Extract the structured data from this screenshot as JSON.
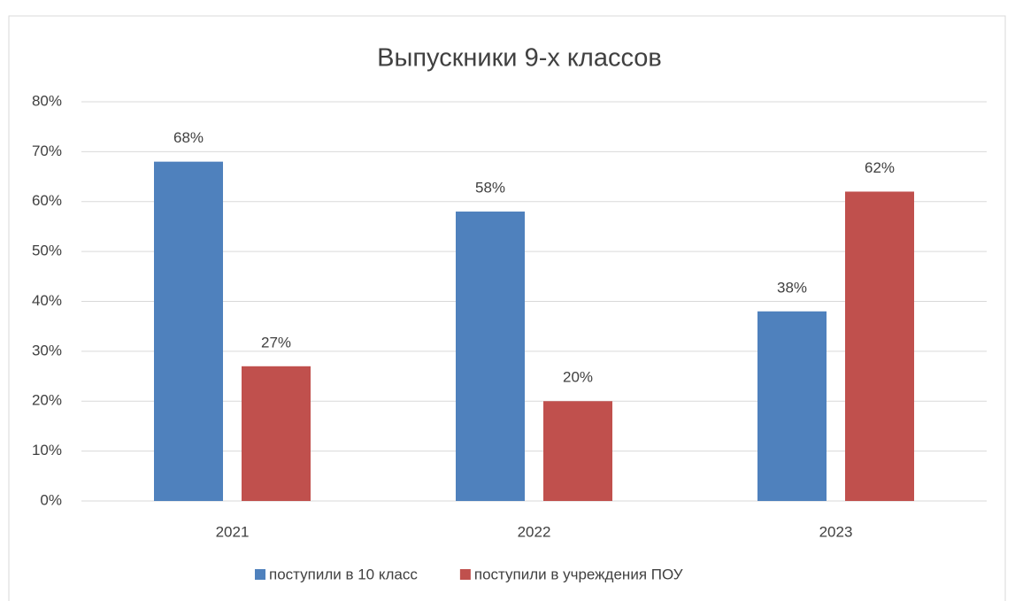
{
  "chart_data": {
    "type": "bar",
    "title": "Выпускники 9-х классов",
    "categories": [
      "2021",
      "2022",
      "2023"
    ],
    "series": [
      {
        "name": "поступили в 10 класс",
        "color": "#4f81bd",
        "values": [
          68,
          58,
          38
        ],
        "value_labels": [
          "68%",
          "58%",
          "38%"
        ]
      },
      {
        "name": "поступили в учреждения ПОУ",
        "color": "#c0504d",
        "values": [
          27,
          20,
          62
        ],
        "value_labels": [
          "27%",
          "20%",
          "62%"
        ]
      }
    ],
    "ylim": [
      0,
      80
    ],
    "yticks": [
      {
        "value": 0,
        "label": "0%"
      },
      {
        "value": 10,
        "label": "10%"
      },
      {
        "value": 20,
        "label": "20%"
      },
      {
        "value": 30,
        "label": "30%"
      },
      {
        "value": 40,
        "label": "40%"
      },
      {
        "value": 50,
        "label": "50%"
      },
      {
        "value": 60,
        "label": "60%"
      },
      {
        "value": 70,
        "label": "70%"
      },
      {
        "value": 80,
        "label": "80%"
      }
    ],
    "grid": true,
    "legend": "bottom"
  }
}
